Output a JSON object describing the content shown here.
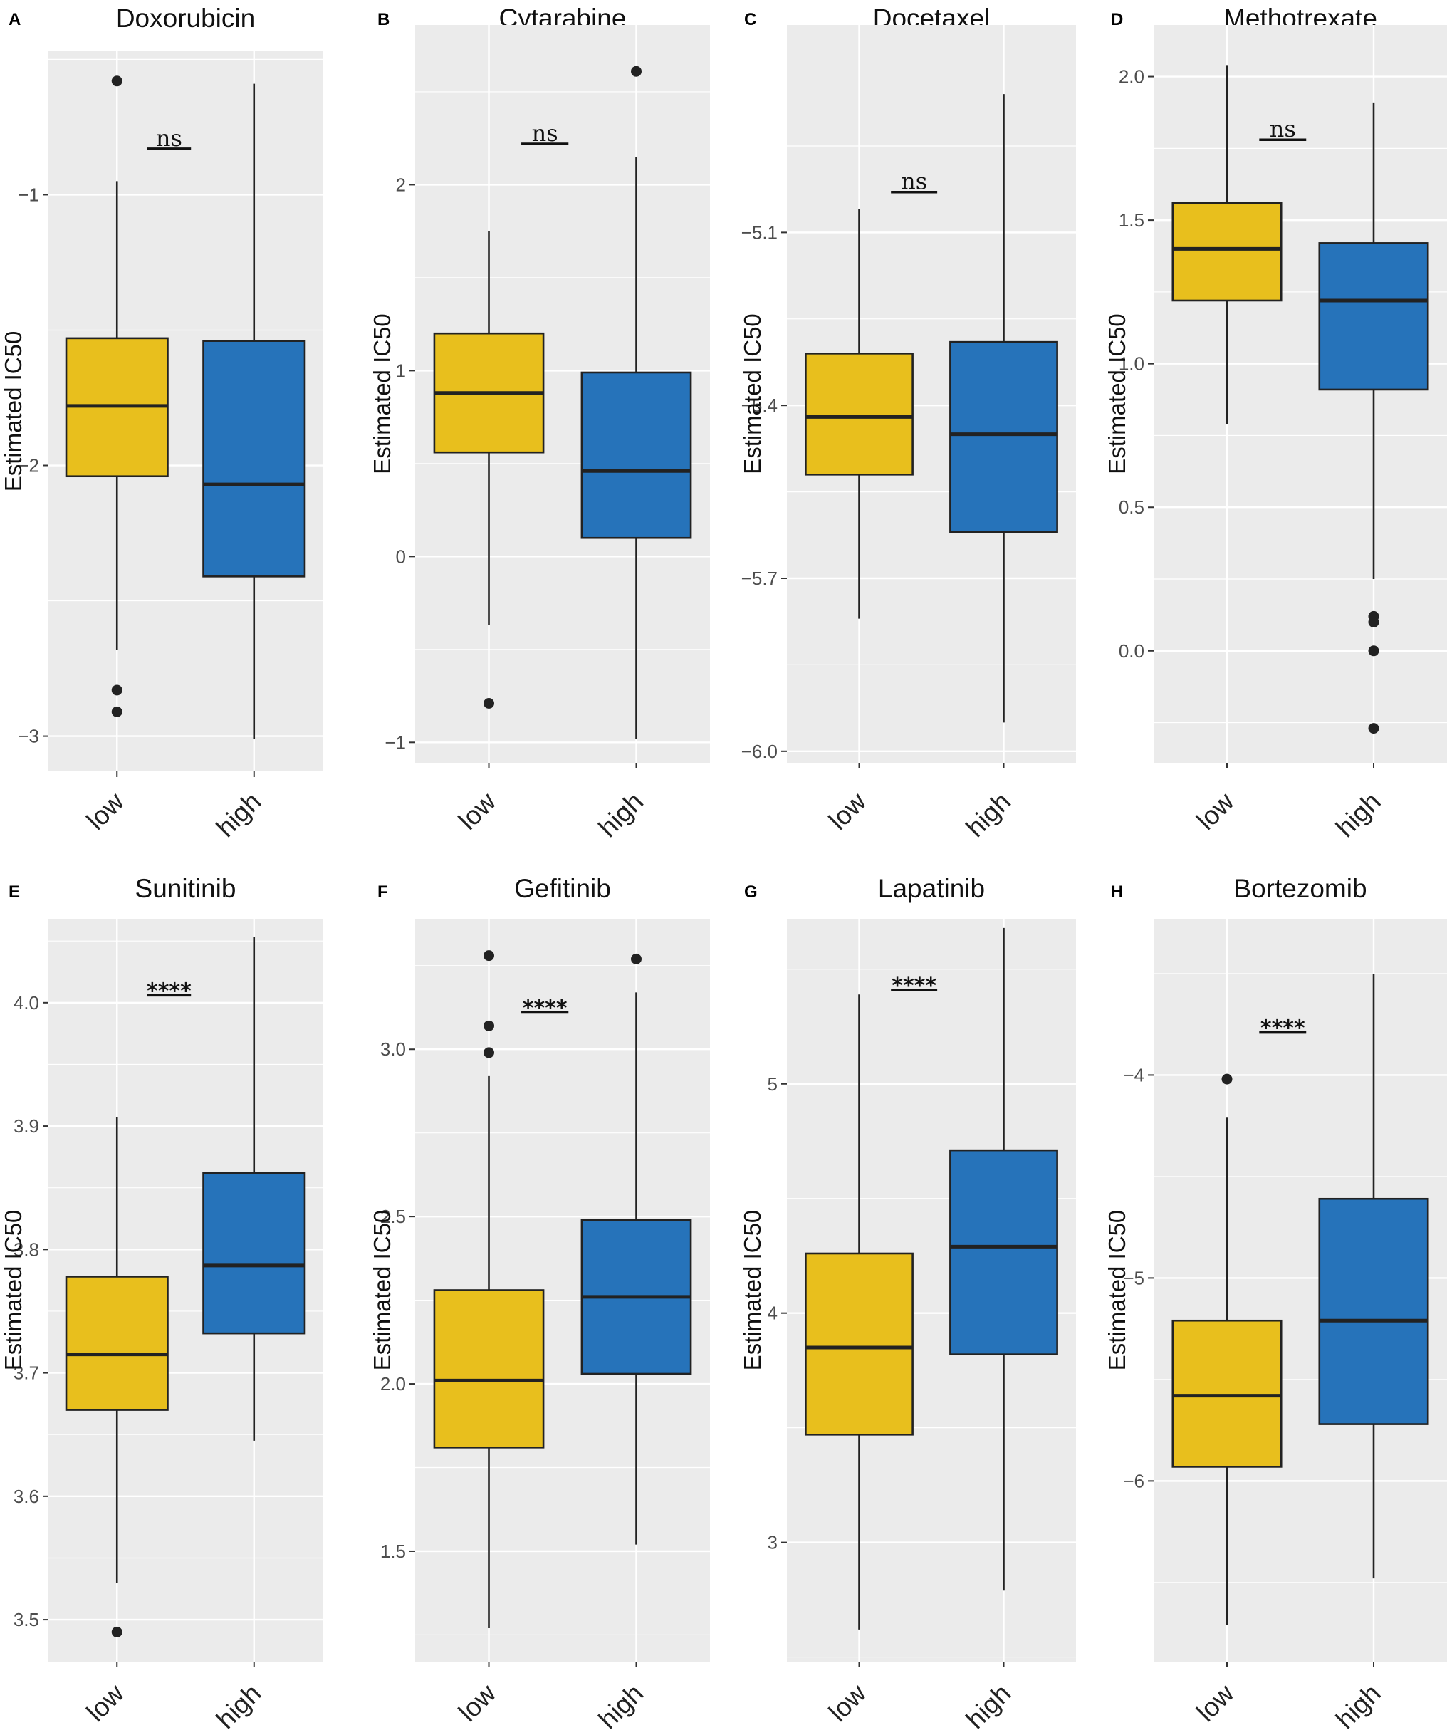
{
  "colors": {
    "low": "#E8BF1D",
    "high": "#2673BA",
    "panel_bg": "#EBEBEB",
    "grid": "#FFFFFF",
    "line": "#222222"
  },
  "chart_data": [
    {
      "letter": "A",
      "type": "box",
      "title": "Doxorubicin",
      "ylabel": "Estimated IC50",
      "categories": [
        "low",
        "high"
      ],
      "ylim": [
        -3.13,
        -0.47
      ],
      "yticks": [
        -3,
        -2,
        -1
      ],
      "ytick_labels": [
        "−3",
        "−2",
        "−1"
      ],
      "boxes": [
        {
          "group": "low",
          "whisker_low": -2.68,
          "q1": -2.04,
          "median": -1.78,
          "q3": -1.53,
          "whisker_high": -0.95,
          "outliers": [
            -0.58,
            -2.83,
            -2.91
          ]
        },
        {
          "group": "high",
          "whisker_low": -3.01,
          "q1": -2.41,
          "median": -2.07,
          "q3": -1.54,
          "whisker_high": -0.59,
          "outliers": []
        }
      ],
      "significance": "ns",
      "sig_y": -0.83
    },
    {
      "letter": "B",
      "type": "box",
      "title": "Cytarabine",
      "ylabel": "Estimated IC50",
      "categories": [
        "low",
        "high"
      ],
      "ylim": [
        -1.11,
        2.86
      ],
      "yticks": [
        -1,
        0,
        1,
        2
      ],
      "ytick_labels": [
        "−1",
        "0",
        "1",
        "2"
      ],
      "boxes": [
        {
          "group": "low",
          "whisker_low": -0.37,
          "q1": 0.56,
          "median": 0.88,
          "q3": 1.2,
          "whisker_high": 1.75,
          "outliers": [
            -0.79
          ]
        },
        {
          "group": "high",
          "whisker_low": -0.98,
          "q1": 0.1,
          "median": 0.46,
          "q3": 0.99,
          "whisker_high": 2.15,
          "outliers": [
            2.61
          ]
        }
      ],
      "significance": "ns",
      "sig_y": 2.22
    },
    {
      "letter": "C",
      "type": "box",
      "title": "Docetaxel",
      "ylabel": "Estimated IC50",
      "categories": [
        "low",
        "high"
      ],
      "ylim": [
        -6.02,
        -4.74
      ],
      "yticks": [
        -6.0,
        -5.7,
        -5.4,
        -5.1
      ],
      "ytick_labels": [
        "−6.0",
        "−5.7",
        "−5.4",
        "−5.1"
      ],
      "boxes": [
        {
          "group": "low",
          "whisker_low": -5.77,
          "q1": -5.52,
          "median": -5.42,
          "q3": -5.31,
          "whisker_high": -5.06,
          "outliers": []
        },
        {
          "group": "high",
          "whisker_low": -5.95,
          "q1": -5.62,
          "median": -5.45,
          "q3": -5.29,
          "whisker_high": -4.86,
          "outliers": []
        }
      ],
      "significance": "ns",
      "sig_y": -5.03
    },
    {
      "letter": "D",
      "type": "box",
      "title": "Methotrexate",
      "ylabel": "Estimated IC50",
      "categories": [
        "low",
        "high"
      ],
      "ylim": [
        -0.39,
        2.18
      ],
      "yticks": [
        0.0,
        0.5,
        1.0,
        1.5,
        2.0
      ],
      "ytick_labels": [
        "0.0",
        "0.5",
        "1.0",
        "1.5",
        "2.0"
      ],
      "boxes": [
        {
          "group": "low",
          "whisker_low": 0.79,
          "q1": 1.22,
          "median": 1.4,
          "q3": 1.56,
          "whisker_high": 2.04,
          "outliers": []
        },
        {
          "group": "high",
          "whisker_low": 0.25,
          "q1": 0.91,
          "median": 1.22,
          "q3": 1.42,
          "whisker_high": 1.91,
          "outliers": [
            0.12,
            0.1,
            0.0,
            -0.27
          ]
        }
      ],
      "significance": "ns",
      "sig_y": 1.78
    },
    {
      "letter": "E",
      "type": "box",
      "title": "Sunitinib",
      "ylabel": "Estimated IC50",
      "categories": [
        "low",
        "high"
      ],
      "ylim": [
        3.466,
        4.068
      ],
      "yticks": [
        3.5,
        3.6,
        3.7,
        3.8,
        3.9,
        4.0
      ],
      "ytick_labels": [
        "3.5",
        "3.6",
        "3.7",
        "3.8",
        "3.9",
        "4.0"
      ],
      "boxes": [
        {
          "group": "low",
          "whisker_low": 3.53,
          "q1": 3.67,
          "median": 3.715,
          "q3": 3.778,
          "whisker_high": 3.907,
          "outliers": [
            3.49
          ]
        },
        {
          "group": "high",
          "whisker_low": 3.645,
          "q1": 3.732,
          "median": 3.787,
          "q3": 3.862,
          "whisker_high": 4.053,
          "outliers": []
        }
      ],
      "significance": "****",
      "sig_y": 4.006
    },
    {
      "letter": "F",
      "type": "box",
      "title": "Gefitinib",
      "ylabel": "Estimated IC50",
      "categories": [
        "low",
        "high"
      ],
      "ylim": [
        1.17,
        3.39
      ],
      "yticks": [
        1.5,
        2.0,
        2.5,
        3.0
      ],
      "ytick_labels": [
        "1.5",
        "2.0",
        "2.5",
        "3.0"
      ],
      "boxes": [
        {
          "group": "low",
          "whisker_low": 1.27,
          "q1": 1.81,
          "median": 2.01,
          "q3": 2.28,
          "whisker_high": 2.92,
          "outliers": [
            3.28,
            3.07,
            2.99
          ]
        },
        {
          "group": "high",
          "whisker_low": 1.52,
          "q1": 2.03,
          "median": 2.26,
          "q3": 2.49,
          "whisker_high": 3.17,
          "outliers": [
            3.27
          ]
        }
      ],
      "significance": "****",
      "sig_y": 3.11
    },
    {
      "letter": "G",
      "type": "box",
      "title": "Lapatinib",
      "ylabel": "Estimated IC50",
      "categories": [
        "low",
        "high"
      ],
      "ylim": [
        2.48,
        5.72
      ],
      "yticks": [
        3,
        4,
        5
      ],
      "ytick_labels": [
        "3",
        "4",
        "5"
      ],
      "boxes": [
        {
          "group": "low",
          "whisker_low": 2.62,
          "q1": 3.47,
          "median": 3.85,
          "q3": 4.26,
          "whisker_high": 5.39,
          "outliers": []
        },
        {
          "group": "high",
          "whisker_low": 2.79,
          "q1": 3.82,
          "median": 4.29,
          "q3": 4.71,
          "whisker_high": 5.68,
          "outliers": []
        }
      ],
      "significance": "****",
      "sig_y": 5.41
    },
    {
      "letter": "H",
      "type": "box",
      "title": "Bortezomib",
      "ylabel": "Estimated IC50",
      "categories": [
        "low",
        "high"
      ],
      "ylim": [
        -6.89,
        -3.23
      ],
      "yticks": [
        -6,
        -5,
        -4
      ],
      "ytick_labels": [
        "−6",
        "−5",
        "−4"
      ],
      "boxes": [
        {
          "group": "low",
          "whisker_low": -6.71,
          "q1": -5.93,
          "median": -5.58,
          "q3": -5.21,
          "whisker_high": -4.21,
          "outliers": [
            -4.02
          ]
        },
        {
          "group": "high",
          "whisker_low": -6.48,
          "q1": -5.72,
          "median": -5.21,
          "q3": -4.61,
          "whisker_high": -3.5,
          "outliers": []
        }
      ],
      "significance": "****",
      "sig_y": -3.79
    }
  ]
}
